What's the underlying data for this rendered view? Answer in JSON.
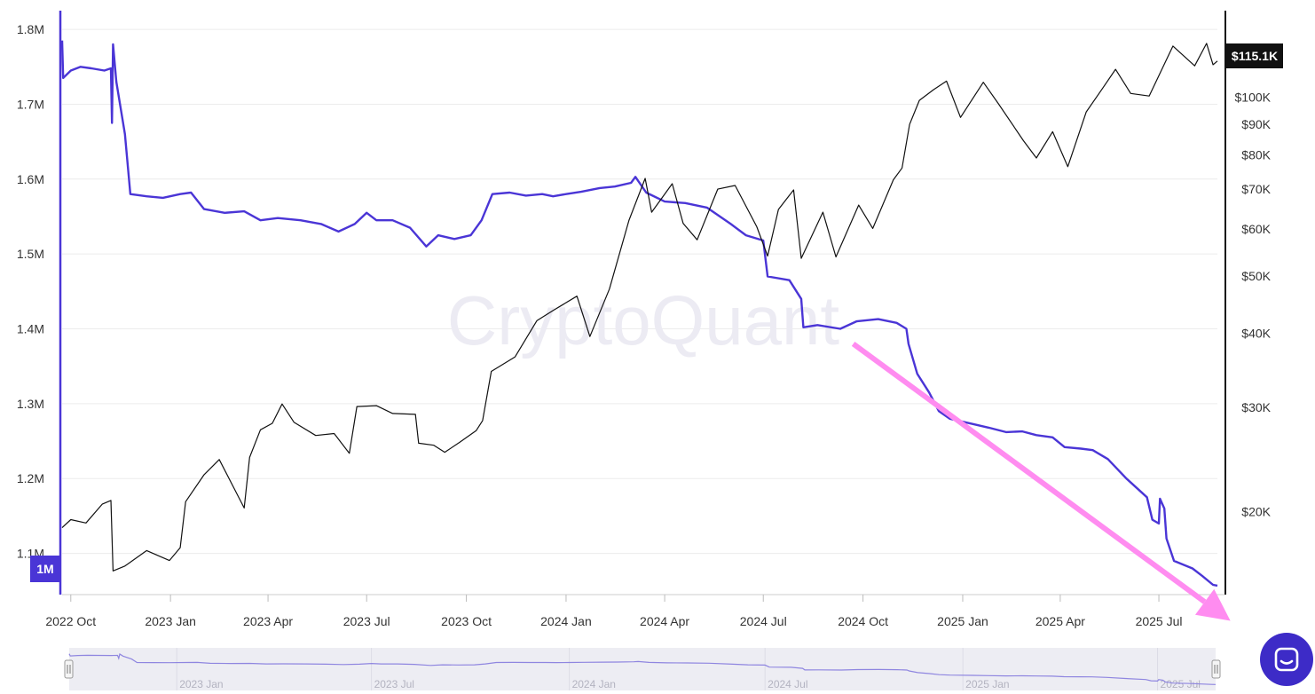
{
  "watermark": "CryptoQuant",
  "chart_data": {
    "type": "line",
    "left_axis": {
      "ticks": [
        "1.8M",
        "1.7M",
        "1.6M",
        "1.5M",
        "1.4M",
        "1.3M",
        "1.2M",
        "1.1M"
      ],
      "values": [
        1800000,
        1700000,
        1600000,
        1500000,
        1400000,
        1300000,
        1200000,
        1100000
      ],
      "min_badge": "1M",
      "range": [
        1045000,
        1825000
      ],
      "color": "#4a35d6"
    },
    "right_axis": {
      "ticks": [
        "$100K",
        "$90K",
        "$80K",
        "$70K",
        "$60K",
        "$50K",
        "$40K",
        "$30K",
        "$20K"
      ],
      "values": [
        100000,
        90000,
        80000,
        70000,
        60000,
        50000,
        40000,
        30000,
        20000
      ],
      "scale": "log",
      "range": [
        14500,
        140000
      ],
      "current_badge": "$115.1K"
    },
    "x_axis": {
      "ticks": [
        "2022 Oct",
        "2023 Jan",
        "2023 Apr",
        "2023 Jul",
        "2023 Oct",
        "2024 Jan",
        "2024 Apr",
        "2024 Jul",
        "2024 Oct",
        "2025 Jan",
        "2025 Apr",
        "2025 Jul"
      ],
      "range": [
        "2022-09-23",
        "2025-08-24"
      ]
    },
    "navigator_ticks": [
      "2023 Jan",
      "2023 Jul",
      "2024 Jan",
      "2024 Jul",
      "2025 Jan",
      "2025 Jul"
    ],
    "series": [
      {
        "axis": "left",
        "color": "#4a35d6",
        "points": [
          [
            "2022-09-23",
            1785000
          ],
          [
            "2022-09-24",
            1735000
          ],
          [
            "2022-10-01",
            1745000
          ],
          [
            "2022-10-10",
            1750000
          ],
          [
            "2022-10-20",
            1748000
          ],
          [
            "2022-11-01",
            1745000
          ],
          [
            "2022-11-07",
            1748000
          ],
          [
            "2022-11-08",
            1675000
          ],
          [
            "2022-11-09",
            1780000
          ],
          [
            "2022-11-12",
            1730000
          ],
          [
            "2022-11-20",
            1660000
          ],
          [
            "2022-11-25",
            1580000
          ],
          [
            "2022-12-10",
            1577000
          ],
          [
            "2022-12-25",
            1575000
          ],
          [
            "2023-01-10",
            1580000
          ],
          [
            "2023-01-20",
            1582000
          ],
          [
            "2023-02-01",
            1560000
          ],
          [
            "2023-02-20",
            1555000
          ],
          [
            "2023-03-10",
            1557000
          ],
          [
            "2023-03-25",
            1545000
          ],
          [
            "2023-04-10",
            1548000
          ],
          [
            "2023-05-01",
            1545000
          ],
          [
            "2023-05-20",
            1540000
          ],
          [
            "2023-06-05",
            1530000
          ],
          [
            "2023-06-20",
            1540000
          ],
          [
            "2023-07-01",
            1555000
          ],
          [
            "2023-07-10",
            1545000
          ],
          [
            "2023-07-25",
            1545000
          ],
          [
            "2023-08-10",
            1535000
          ],
          [
            "2023-08-25",
            1510000
          ],
          [
            "2023-09-05",
            1525000
          ],
          [
            "2023-09-20",
            1520000
          ],
          [
            "2023-10-05",
            1525000
          ],
          [
            "2023-10-15",
            1545000
          ],
          [
            "2023-10-25",
            1580000
          ],
          [
            "2023-11-10",
            1582000
          ],
          [
            "2023-11-25",
            1578000
          ],
          [
            "2023-12-10",
            1580000
          ],
          [
            "2023-12-20",
            1577000
          ],
          [
            "2024-01-01",
            1580000
          ],
          [
            "2024-01-15",
            1583000
          ],
          [
            "2024-02-01",
            1588000
          ],
          [
            "2024-02-15",
            1590000
          ],
          [
            "2024-03-01",
            1595000
          ],
          [
            "2024-03-05",
            1603000
          ],
          [
            "2024-03-15",
            1582000
          ],
          [
            "2024-04-01",
            1570000
          ],
          [
            "2024-04-20",
            1568000
          ],
          [
            "2024-05-10",
            1562000
          ],
          [
            "2024-06-01",
            1540000
          ],
          [
            "2024-06-15",
            1525000
          ],
          [
            "2024-07-01",
            1518000
          ],
          [
            "2024-07-05",
            1470000
          ],
          [
            "2024-07-25",
            1465000
          ],
          [
            "2024-08-05",
            1440000
          ],
          [
            "2024-08-07",
            1402000
          ],
          [
            "2024-08-20",
            1405000
          ],
          [
            "2024-09-10",
            1400000
          ],
          [
            "2024-09-25",
            1410000
          ],
          [
            "2024-10-15",
            1413000
          ],
          [
            "2024-11-01",
            1408000
          ],
          [
            "2024-11-10",
            1400000
          ],
          [
            "2024-11-12",
            1380000
          ],
          [
            "2024-11-20",
            1340000
          ],
          [
            "2024-12-01",
            1315000
          ],
          [
            "2024-12-10",
            1290000
          ],
          [
            "2024-12-20",
            1280000
          ],
          [
            "2025-01-10",
            1273000
          ],
          [
            "2025-01-25",
            1268000
          ],
          [
            "2025-02-10",
            1262000
          ],
          [
            "2025-02-25",
            1263000
          ],
          [
            "2025-03-10",
            1258000
          ],
          [
            "2025-03-25",
            1255000
          ],
          [
            "2025-04-05",
            1242000
          ],
          [
            "2025-04-20",
            1240000
          ],
          [
            "2025-05-01",
            1238000
          ],
          [
            "2025-05-15",
            1226000
          ],
          [
            "2025-06-01",
            1200000
          ],
          [
            "2025-06-20",
            1175000
          ],
          [
            "2025-06-25",
            1145000
          ],
          [
            "2025-07-01",
            1140000
          ],
          [
            "2025-07-02",
            1173000
          ],
          [
            "2025-07-06",
            1160000
          ],
          [
            "2025-07-08",
            1120000
          ],
          [
            "2025-07-15",
            1090000
          ],
          [
            "2025-08-01",
            1080000
          ],
          [
            "2025-08-10",
            1070000
          ],
          [
            "2025-08-20",
            1058000
          ],
          [
            "2025-08-24",
            1057000
          ]
        ]
      },
      {
        "axis": "right",
        "color": "#111111",
        "points": [
          [
            "2022-09-23",
            18800
          ],
          [
            "2022-10-01",
            19400
          ],
          [
            "2022-10-15",
            19150
          ],
          [
            "2022-10-30",
            20600
          ],
          [
            "2022-11-07",
            20900
          ],
          [
            "2022-11-09",
            15900
          ],
          [
            "2022-11-20",
            16200
          ],
          [
            "2022-12-10",
            17200
          ],
          [
            "2022-12-31",
            16550
          ],
          [
            "2023-01-10",
            17400
          ],
          [
            "2023-01-15",
            20800
          ],
          [
            "2023-02-01",
            23100
          ],
          [
            "2023-02-15",
            24500
          ],
          [
            "2023-03-10",
            20300
          ],
          [
            "2023-03-15",
            24700
          ],
          [
            "2023-03-25",
            27500
          ],
          [
            "2023-04-05",
            28200
          ],
          [
            "2023-04-14",
            30400
          ],
          [
            "2023-04-25",
            28300
          ],
          [
            "2023-05-15",
            26900
          ],
          [
            "2023-06-01",
            27100
          ],
          [
            "2023-06-15",
            25100
          ],
          [
            "2023-06-22",
            30100
          ],
          [
            "2023-07-10",
            30200
          ],
          [
            "2023-07-25",
            29300
          ],
          [
            "2023-08-15",
            29200
          ],
          [
            "2023-08-18",
            26100
          ],
          [
            "2023-09-01",
            25900
          ],
          [
            "2023-09-11",
            25200
          ],
          [
            "2023-09-25",
            26200
          ],
          [
            "2023-10-10",
            27400
          ],
          [
            "2023-10-16",
            28500
          ],
          [
            "2023-10-24",
            34500
          ],
          [
            "2023-11-15",
            36500
          ],
          [
            "2023-12-05",
            42000
          ],
          [
            "2023-12-20",
            43700
          ],
          [
            "2024-01-11",
            46200
          ],
          [
            "2024-01-23",
            39500
          ],
          [
            "2024-02-10",
            47500
          ],
          [
            "2024-02-28",
            62000
          ],
          [
            "2024-03-14",
            73000
          ],
          [
            "2024-03-20",
            64000
          ],
          [
            "2024-04-08",
            71500
          ],
          [
            "2024-04-18",
            61300
          ],
          [
            "2024-05-01",
            57500
          ],
          [
            "2024-05-20",
            70000
          ],
          [
            "2024-06-05",
            71000
          ],
          [
            "2024-06-25",
            60500
          ],
          [
            "2024-07-05",
            54000
          ],
          [
            "2024-07-15",
            64700
          ],
          [
            "2024-07-29",
            69800
          ],
          [
            "2024-08-05",
            53500
          ],
          [
            "2024-08-25",
            64000
          ],
          [
            "2024-09-06",
            53800
          ],
          [
            "2024-09-27",
            65800
          ],
          [
            "2024-10-10",
            60100
          ],
          [
            "2024-10-29",
            72600
          ],
          [
            "2024-11-06",
            76000
          ],
          [
            "2024-11-13",
            90000
          ],
          [
            "2024-11-22",
            98800
          ],
          [
            "2024-12-05",
            103000
          ],
          [
            "2024-12-17",
            106500
          ],
          [
            "2024-12-30",
            92500
          ],
          [
            "2025-01-20",
            106000
          ],
          [
            "2025-02-03",
            97500
          ],
          [
            "2025-02-26",
            84500
          ],
          [
            "2025-03-10",
            79000
          ],
          [
            "2025-03-25",
            87500
          ],
          [
            "2025-04-08",
            76400
          ],
          [
            "2025-04-25",
            94500
          ],
          [
            "2025-05-10",
            103500
          ],
          [
            "2025-05-22",
            111500
          ],
          [
            "2025-06-05",
            101500
          ],
          [
            "2025-06-22",
            100500
          ],
          [
            "2025-07-14",
            122000
          ],
          [
            "2025-08-03",
            113000
          ],
          [
            "2025-08-14",
            123300
          ],
          [
            "2025-08-20",
            113500
          ],
          [
            "2025-08-24",
            115100
          ]
        ]
      }
    ],
    "annotation": {
      "type": "arrow",
      "color": "#ff8cf0",
      "from": [
        "2024-09-22",
        1380000
      ],
      "to": [
        "2025-09-05",
        1010000
      ]
    }
  }
}
